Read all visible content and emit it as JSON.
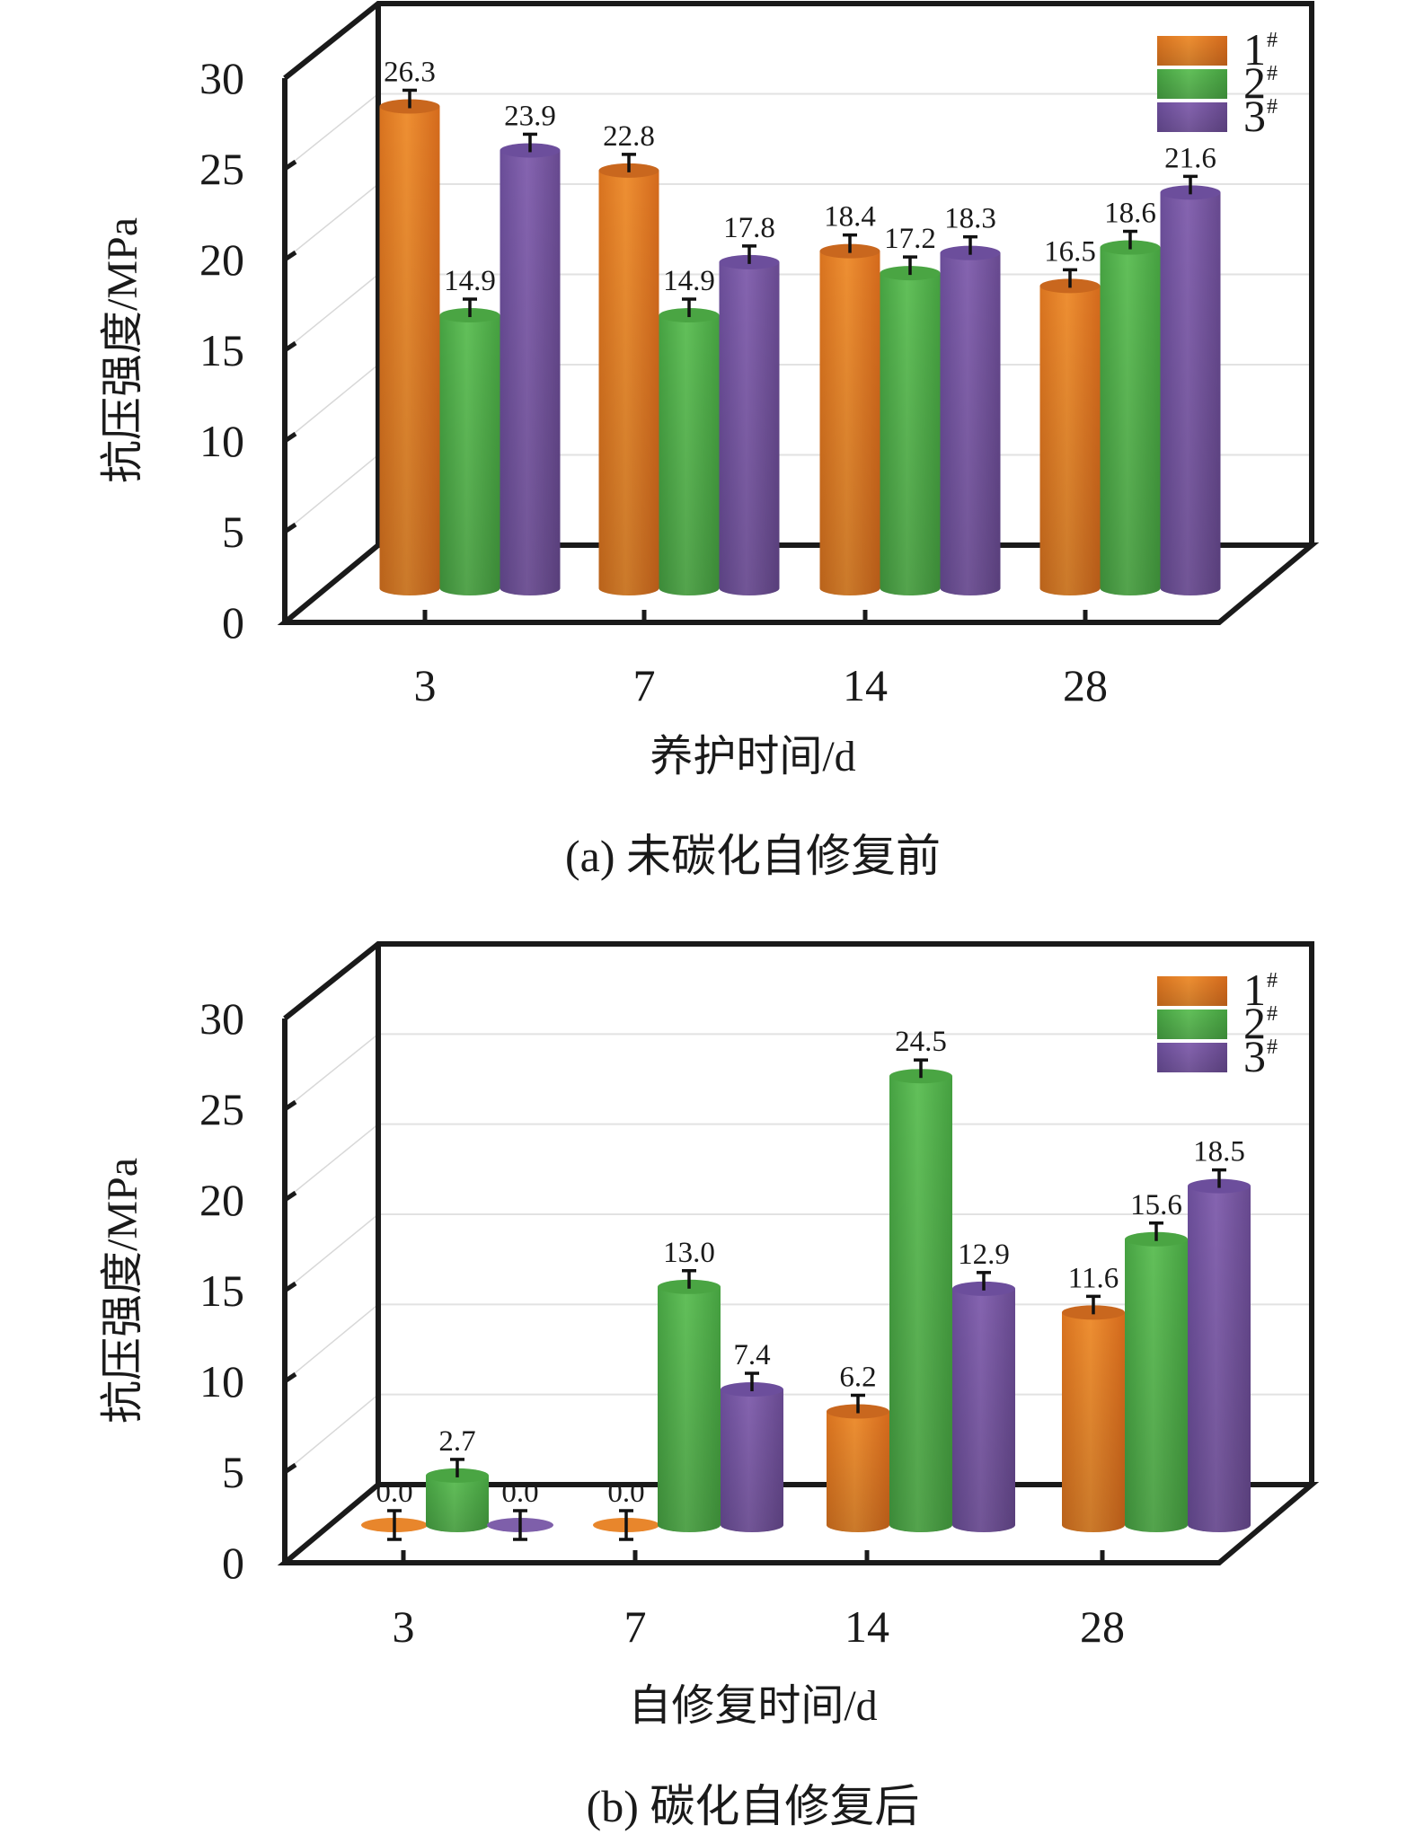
{
  "series_colors": [
    "#E8862C",
    "#5BB953",
    "#7E5FAA"
  ],
  "chart_data": [
    {
      "type": "bar",
      "style": "3d-cylinder",
      "caption": "(a) 未碳化自修复前",
      "xlabel": "养护时间/d",
      "ylabel": "抗压强度/MPa",
      "categories": [
        "3",
        "7",
        "14",
        "28"
      ],
      "yticks": [
        "0",
        "5",
        "10",
        "15",
        "20",
        "25",
        "30"
      ],
      "ylim": [
        0,
        30
      ],
      "grid": true,
      "legend_position": "top-right",
      "series": [
        {
          "name": "1",
          "sup": "#",
          "values": [
            26.3,
            22.8,
            18.4,
            16.5
          ],
          "labels": [
            "26.3",
            "22.8",
            "18.4",
            "16.5"
          ]
        },
        {
          "name": "2",
          "sup": "#",
          "values": [
            14.9,
            14.9,
            17.2,
            18.6
          ],
          "labels": [
            "14.9",
            "14.9",
            "17.2",
            "18.6"
          ]
        },
        {
          "name": "3",
          "sup": "#",
          "values": [
            23.9,
            17.8,
            18.3,
            21.6
          ],
          "labels": [
            "23.9",
            "17.8",
            "18.3",
            "21.6"
          ]
        }
      ]
    },
    {
      "type": "bar",
      "style": "3d-cylinder",
      "caption": "(b) 碳化自修复后",
      "xlabel": "自修复时间/d",
      "ylabel": "抗压强度/MPa",
      "categories": [
        "3",
        "7",
        "14",
        "28"
      ],
      "yticks": [
        "0",
        "5",
        "10",
        "15",
        "20",
        "25",
        "30"
      ],
      "ylim": [
        0,
        30
      ],
      "grid": true,
      "legend_position": "top-right",
      "series": [
        {
          "name": "1",
          "sup": "#",
          "values": [
            0.0,
            0.0,
            6.2,
            11.6
          ],
          "labels": [
            "0.0",
            "0.0",
            "6.2",
            "11.6"
          ]
        },
        {
          "name": "2",
          "sup": "#",
          "values": [
            2.7,
            13.0,
            24.5,
            15.6
          ],
          "labels": [
            "2.7",
            "13.0",
            "24.5",
            "15.6"
          ]
        },
        {
          "name": "3",
          "sup": "#",
          "values": [
            0.0,
            7.4,
            12.9,
            18.5
          ],
          "labels": [
            "0.0",
            "7.4",
            "12.9",
            "18.5"
          ]
        }
      ]
    }
  ]
}
